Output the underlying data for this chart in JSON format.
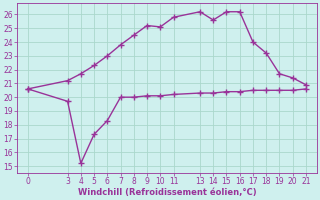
{
  "xlabel": "Windchill (Refroidissement éolien,°C)",
  "bg_color": "#cff0ee",
  "grid_color": "#aad8cc",
  "line_color": "#993399",
  "spine_color": "#993399",
  "x_ticks": [
    0,
    3,
    4,
    5,
    6,
    7,
    8,
    9,
    10,
    11,
    13,
    14,
    15,
    16,
    17,
    18,
    19,
    20,
    21
  ],
  "temp_x": [
    0,
    3,
    4,
    5,
    6,
    7,
    8,
    9,
    10,
    11,
    13,
    14,
    15,
    16,
    17,
    18,
    19,
    20,
    21
  ],
  "temp_y": [
    20.6,
    21.2,
    21.7,
    22.3,
    23.0,
    23.8,
    24.5,
    25.2,
    25.1,
    25.8,
    26.2,
    25.6,
    26.2,
    26.2,
    24.0,
    23.2,
    21.7,
    21.4,
    20.9
  ],
  "windchill_x": [
    0,
    3,
    4,
    5,
    6,
    7,
    8,
    9,
    10,
    11,
    13,
    14,
    15,
    16,
    17,
    18,
    19,
    20,
    21
  ],
  "windchill_y": [
    20.6,
    19.7,
    15.2,
    17.3,
    18.3,
    20.0,
    20.0,
    20.1,
    20.1,
    20.2,
    20.3,
    20.3,
    20.4,
    20.4,
    20.5,
    20.5,
    20.5,
    20.5,
    20.6
  ],
  "ylim_min": 14.5,
  "ylim_max": 26.8,
  "yticks": [
    15,
    16,
    17,
    18,
    19,
    20,
    21,
    22,
    23,
    24,
    25,
    26
  ],
  "xlim_min": -0.8,
  "xlim_max": 21.8,
  "tick_fontsize": 5.5,
  "xlabel_fontsize": 6.0,
  "linewidth": 1.0,
  "markersize": 4.0
}
